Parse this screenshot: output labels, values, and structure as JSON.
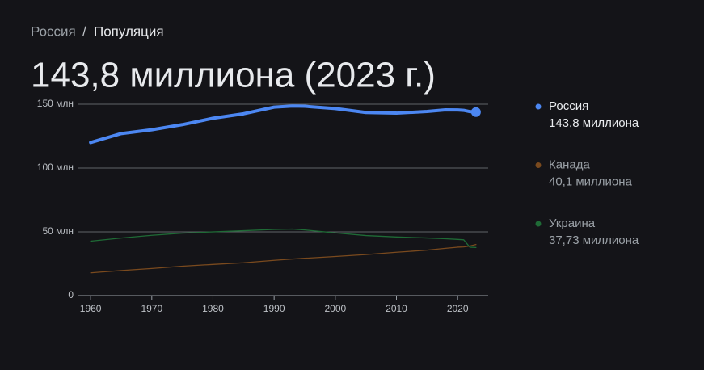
{
  "breadcrumb": {
    "items": [
      "Россия",
      "Популяция"
    ],
    "separator": "/"
  },
  "chart_data": {
    "type": "line",
    "title": "143,8 миллиона (2023 г.)",
    "x": [
      1960,
      1965,
      1970,
      1975,
      1980,
      1985,
      1990,
      1993,
      1995,
      2000,
      2005,
      2010,
      2015,
      2018,
      2020,
      2021,
      2022,
      2023
    ],
    "xlim": [
      1958,
      2025
    ],
    "xticks": [
      1960,
      1970,
      1980,
      1990,
      2000,
      2010,
      2020
    ],
    "ylim": [
      0,
      150
    ],
    "yticks": [
      0,
      {
        "value": 50,
        "label": "50 млн"
      },
      {
        "value": 100,
        "label": "100 млн"
      },
      {
        "value": 150,
        "label": "150 млн"
      }
    ],
    "grid": true,
    "legend": "right",
    "series": [
      {
        "name": "Россия",
        "color": "#4c87f2",
        "values": [
          120,
          127,
          130,
          134,
          139,
          142.5,
          147.7,
          148.6,
          148.4,
          146.6,
          143.5,
          143,
          144.3,
          145.6,
          145.5,
          145.2,
          144.2,
          143.8
        ],
        "value_labels": [
          null,
          null,
          null,
          null,
          null,
          null,
          null,
          null,
          null,
          null,
          null,
          null,
          null,
          null,
          null,
          null,
          null,
          "143,8 миллиона"
        ]
      },
      {
        "name": "Канада",
        "color": "#7a4a1e",
        "values": [
          17.9,
          19.7,
          21.3,
          23.1,
          24.5,
          25.8,
          27.7,
          28.7,
          29.3,
          30.7,
          32.2,
          34,
          35.7,
          37.1,
          38,
          38.2,
          38.9,
          40.1
        ],
        "value_labels": [
          null,
          null,
          null,
          null,
          null,
          null,
          null,
          null,
          null,
          null,
          null,
          null,
          null,
          null,
          null,
          null,
          null,
          "40,1 миллиона"
        ]
      },
      {
        "name": "Украина",
        "color": "#1f6b36",
        "values": [
          42.7,
          45.2,
          47.3,
          49,
          50,
          50.9,
          51.9,
          52.2,
          51.5,
          49.2,
          47.1,
          46,
          45.2,
          44.6,
          44.1,
          43.8,
          38,
          37.73
        ],
        "value_labels": [
          null,
          null,
          null,
          null,
          null,
          null,
          null,
          null,
          null,
          null,
          null,
          null,
          null,
          null,
          null,
          null,
          null,
          "37,73 миллиона"
        ]
      }
    ]
  }
}
